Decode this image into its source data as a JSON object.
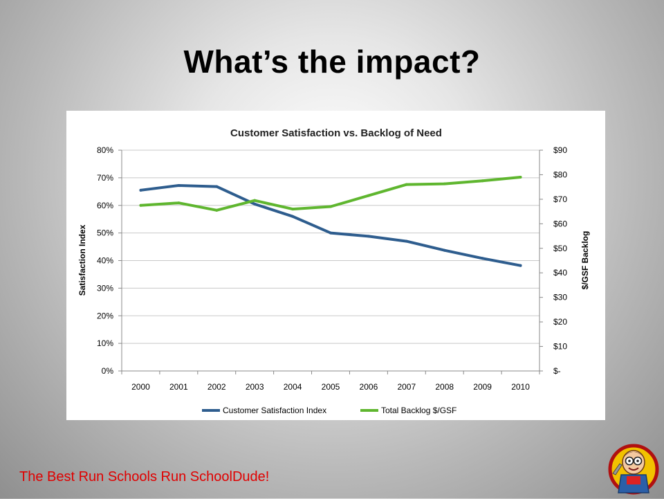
{
  "slide": {
    "title": "What’s the impact?",
    "footer": "The Best Run Schools Run SchoolDude!",
    "footer_color": "#e00000"
  },
  "mascot": {
    "icon": "schooldude-mascot-logo"
  },
  "chart_data": {
    "type": "line",
    "title": "Customer Satisfaction vs. Backlog of Need",
    "categories": [
      "2000",
      "2001",
      "2002",
      "2003",
      "2004",
      "2005",
      "2006",
      "2007",
      "2008",
      "2009",
      "2010"
    ],
    "ylabel": "Satisfaction Index",
    "y2label": "$/GSF Backlog",
    "ylim": [
      0,
      0.8
    ],
    "y2lim": [
      0,
      90
    ],
    "yticks": [
      "0%",
      "10%",
      "20%",
      "30%",
      "40%",
      "50%",
      "60%",
      "70%",
      "80%"
    ],
    "y2ticks": [
      "$-",
      "$10",
      "$20",
      "$30",
      "$40",
      "$50",
      "$60",
      "$70",
      "$80",
      "$90"
    ],
    "grid": true,
    "legend_position": "bottom",
    "series": [
      {
        "name": "Customer Satisfaction Index",
        "axis": "left",
        "color": "#2e5d8e",
        "values": [
          0.655,
          0.672,
          0.668,
          0.605,
          0.56,
          0.5,
          0.488,
          0.47,
          0.437,
          0.408,
          0.382
        ]
      },
      {
        "name": "Total Backlog $/GSF",
        "axis": "right",
        "color": "#5fb62f",
        "values": [
          67.5,
          68.5,
          65.5,
          69.5,
          66.0,
          67.0,
          71.5,
          76.0,
          76.3,
          77.5,
          79.0
        ]
      }
    ]
  }
}
